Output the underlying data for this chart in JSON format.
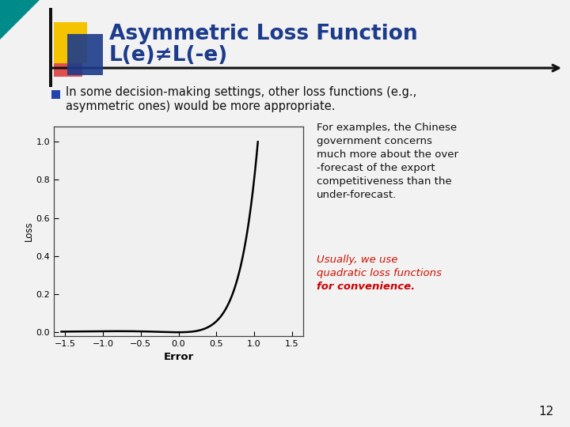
{
  "title_line1": "Asymmetric Loss Function",
  "title_line2": "L(e)≠L(-e)",
  "title_color": "#1C3B8A",
  "slide_bg": "#F2F2F2",
  "bullet_text_line1": "In some decision-making settings, other loss functions (e.g.,",
  "bullet_text_line2": "asymmetric ones) would be more appropriate.",
  "right_text_lines": [
    "For examples, the Chinese",
    "government concerns",
    "much more about the over",
    "-forecast of the export",
    "competitiveness than the",
    "under-forecast."
  ],
  "italic_text1": "Usually, we use",
  "italic_text2": "quadratic loss functions",
  "italic_text3": "for convenience.",
  "page_num": "12",
  "plot_xlim": [
    -1.65,
    1.65
  ],
  "plot_ylim": [
    -0.02,
    1.08
  ],
  "plot_xlabel": "Error",
  "plot_ylabel": "Loss",
  "curve_color": "#000000",
  "bullet_color": "#2244AA",
  "header_bar_color": "#1C3B8A",
  "gold_square": "#F5C400",
  "red_square": "#DD3333",
  "teal_triangle": "#008B8B",
  "line_color": "#111111",
  "red_text_color": "#CC1100",
  "bold_red_color": "#CC0000"
}
